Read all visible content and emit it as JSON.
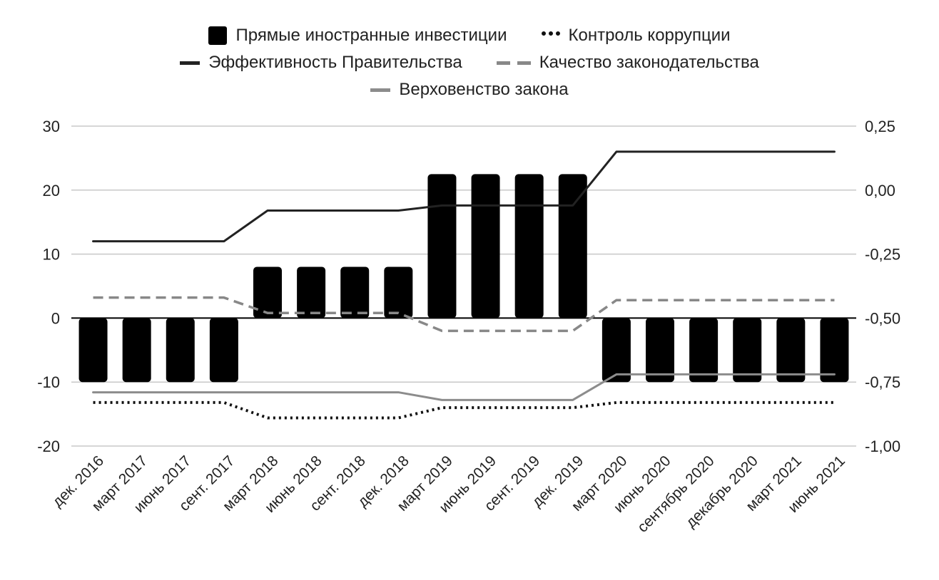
{
  "chart_data": {
    "type": "bar",
    "title": "",
    "categories": [
      "дек. 2016",
      "март 2017",
      "июнь 2017",
      "сент. 2017",
      "март 2018",
      "июнь 2018",
      "сент. 2018",
      "дек. 2018",
      "март 2019",
      "июнь 2019",
      "сент. 2019",
      "дек. 2019",
      "март 2020",
      "июнь 2020",
      "сентябрь 2020",
      "декабрь 2020",
      "март 2021",
      "июнь 2021"
    ],
    "y_left": {
      "ylim": [
        -20,
        30
      ],
      "ticks": [
        "30",
        "20",
        "10",
        "0",
        "-10",
        "-20"
      ],
      "tick_values": [
        30,
        20,
        10,
        0,
        -10,
        -20
      ]
    },
    "y_right": {
      "ylim": [
        -1.0,
        0.25
      ],
      "ticks": [
        "0,25",
        "0,00",
        "-0,25",
        "-0,50",
        "-0,75",
        "-1,00"
      ],
      "tick_values": [
        0.25,
        0,
        -0.25,
        -0.5,
        -0.75,
        -1.0
      ]
    },
    "grid": true,
    "legend_position": "top",
    "series": [
      {
        "name": "Прямые иностранные инвестиции",
        "type": "bar",
        "axis": "left",
        "color": "#000000",
        "values": [
          -10,
          -10,
          -10,
          -10,
          8,
          8,
          8,
          8,
          22.5,
          22.5,
          22.5,
          22.5,
          -10,
          -10,
          -10,
          -10,
          -10,
          -10
        ]
      },
      {
        "name": "Контроль коррупции",
        "type": "line",
        "style": "dotted",
        "axis": "right",
        "color": "#111111",
        "values": [
          -0.83,
          -0.83,
          -0.83,
          -0.83,
          -0.89,
          -0.89,
          -0.89,
          -0.89,
          -0.85,
          -0.85,
          -0.85,
          -0.85,
          -0.83,
          -0.83,
          -0.83,
          -0.83,
          -0.83,
          -0.83
        ]
      },
      {
        "name": "Эффективность Правительства",
        "type": "line",
        "style": "solid",
        "axis": "right",
        "color": "#222222",
        "values": [
          -0.2,
          -0.2,
          -0.2,
          -0.2,
          -0.08,
          -0.08,
          -0.08,
          -0.08,
          -0.06,
          -0.06,
          -0.06,
          -0.06,
          0.15,
          0.15,
          0.15,
          0.15,
          0.15,
          0.15
        ]
      },
      {
        "name": "Качество законодательства",
        "type": "line",
        "style": "dashed",
        "axis": "right",
        "color": "#888888",
        "values": [
          -0.42,
          -0.42,
          -0.42,
          -0.42,
          -0.48,
          -0.48,
          -0.48,
          -0.48,
          -0.55,
          -0.55,
          -0.55,
          -0.55,
          -0.43,
          -0.43,
          -0.43,
          -0.43,
          -0.43,
          -0.43
        ]
      },
      {
        "name": "Верховенство закона",
        "type": "line",
        "style": "solid",
        "axis": "right",
        "color": "#8c8c8c",
        "values": [
          -0.79,
          -0.79,
          -0.79,
          -0.79,
          -0.79,
          -0.79,
          -0.79,
          -0.79,
          -0.82,
          -0.82,
          -0.82,
          -0.82,
          -0.72,
          -0.72,
          -0.72,
          -0.72,
          -0.72,
          -0.72
        ]
      }
    ]
  }
}
